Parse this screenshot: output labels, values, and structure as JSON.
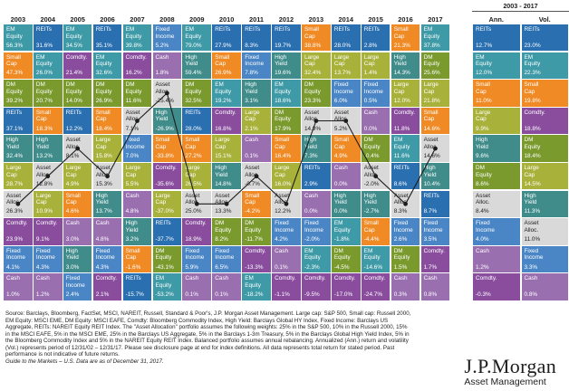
{
  "chart_data": {
    "type": "table",
    "columns": [
      "2003",
      "2004",
      "2005",
      "2006",
      "2007",
      "2008",
      "2009",
      "2010",
      "2011",
      "2012",
      "2013",
      "2014",
      "2015",
      "2016",
      "2017"
    ],
    "summary_header": "2003 - 2017",
    "summary_columns": [
      "Ann.",
      "Vol."
    ],
    "asset_classes": {
      "EM Equity": "#3d9aa6",
      "REITs": "#2a6fb0",
      "Small Cap": "#f08a24",
      "DM Equity": "#7a9a2e",
      "High Yield": "#3f8c8a",
      "Large Cap": "#a8b13a",
      "Asset Alloc.": "#d9d9d9",
      "Comdty.": "#8a4d9e",
      "Fixed Income": "#4a86c5",
      "Cash": "#9a6fb0"
    },
    "rows": [
      [
        [
          "EM Equity",
          "56.3%"
        ],
        [
          "REITs",
          "31.6%"
        ],
        [
          "EM Equity",
          "34.5%"
        ],
        [
          "REITs",
          "35.1%"
        ],
        [
          "EM Equity",
          "39.8%"
        ],
        [
          "Fixed Income",
          "5.2%"
        ],
        [
          "EM Equity",
          "79.0%"
        ],
        [
          "REITs",
          "27.9%"
        ],
        [
          "REITs",
          "8.3%"
        ],
        [
          "REITs",
          "19.7%"
        ],
        [
          "Small Cap",
          "38.8%"
        ],
        [
          "REITs",
          "28.0%"
        ],
        [
          "REITs",
          "2.8%"
        ],
        [
          "Small Cap",
          "21.3%"
        ],
        [
          "EM Equity",
          "37.8%"
        ],
        [
          "REITs",
          "12.7%"
        ],
        [
          "REITs",
          "23.0%"
        ]
      ],
      [
        [
          "Small Cap",
          "47.3%"
        ],
        [
          "EM Equity",
          "26.0%"
        ],
        [
          "Comdty.",
          "21.4%"
        ],
        [
          "EM Equity",
          "32.6%"
        ],
        [
          "Comdty.",
          "16.2%"
        ],
        [
          "Cash",
          "1.8%"
        ],
        [
          "High Yield",
          "59.4%"
        ],
        [
          "Small Cap",
          "26.9%"
        ],
        [
          "Fixed Income",
          "7.8%"
        ],
        [
          "High Yield",
          "19.6%"
        ],
        [
          "Large Cap",
          "32.4%"
        ],
        [
          "Large Cap",
          "13.7%"
        ],
        [
          "Large Cap",
          "1.4%"
        ],
        [
          "High Yield",
          "14.3%"
        ],
        [
          "DM Equity",
          "25.6%"
        ],
        [
          "EM Equity",
          "12.0%"
        ],
        [
          "EM Equity",
          "22.3%"
        ]
      ],
      [
        [
          "DM Equity",
          "39.2%"
        ],
        [
          "DM Equity",
          "20.7%"
        ],
        [
          "DM Equity",
          "14.0%"
        ],
        [
          "DM Equity",
          "26.9%"
        ],
        [
          "DM Equity",
          "11.6%"
        ],
        [
          "Asset Alloc.",
          "-25.4%"
        ],
        [
          "DM Equity",
          "32.5%"
        ],
        [
          "EM Equity",
          "19.2%"
        ],
        [
          "High Yield",
          "3.1%"
        ],
        [
          "EM Equity",
          "18.6%"
        ],
        [
          "DM Equity",
          "23.3%"
        ],
        [
          "Fixed Income",
          "6.0%"
        ],
        [
          "Fixed Income",
          "0.5%"
        ],
        [
          "Large Cap",
          "12.0%"
        ],
        [
          "Large Cap",
          "21.8%"
        ],
        [
          "Small Cap",
          "11.0%"
        ],
        [
          "Small Cap",
          "19.8%"
        ]
      ],
      [
        [
          "REITs",
          "37.1%"
        ],
        [
          "Small Cap",
          "18.3%"
        ],
        [
          "REITs",
          "12.2%"
        ],
        [
          "Small Cap",
          "18.4%"
        ],
        [
          "Asset Alloc.",
          "7.1%"
        ],
        [
          "High Yield",
          "-26.9%"
        ],
        [
          "REITs",
          "28.0%"
        ],
        [
          "Comdty.",
          "16.8%"
        ],
        [
          "Large Cap",
          "2.1%"
        ],
        [
          "DM Equity",
          "17.9%"
        ],
        [
          "Asset Alloc.",
          "14.9%"
        ],
        [
          "Asset Alloc.",
          "5.2%"
        ],
        [
          "Cash",
          "0.0%"
        ],
        [
          "Comdty.",
          "11.8%"
        ],
        [
          "Small Cap",
          "14.6%"
        ],
        [
          "Large Cap",
          "9.9%"
        ],
        [
          "Comdty.",
          "18.8%"
        ]
      ],
      [
        [
          "High Yield",
          "32.4%"
        ],
        [
          "High Yield",
          "13.2%"
        ],
        [
          "Asset Alloc.",
          "8.1%"
        ],
        [
          "Large Cap",
          "15.8%"
        ],
        [
          "Fixed Income",
          "7.0%"
        ],
        [
          "Small Cap",
          "-33.8%"
        ],
        [
          "Small Cap",
          "27.2%"
        ],
        [
          "Large Cap",
          "15.1%"
        ],
        [
          "Cash",
          "0.1%"
        ],
        [
          "Small Cap",
          "16.4%"
        ],
        [
          "High Yield",
          "7.3%"
        ],
        [
          "Small Cap",
          "4.9%"
        ],
        [
          "DM Equity",
          "-0.4%"
        ],
        [
          "EM Equity",
          "11.6%"
        ],
        [
          "Asset Alloc.",
          "14.6%"
        ],
        [
          "High Yield",
          "9.6%"
        ],
        [
          "DM Equity",
          "18.4%"
        ]
      ],
      [
        [
          "Large Cap",
          "28.7%"
        ],
        [
          "Asset Alloc.",
          "12.8%"
        ],
        [
          "Large Cap",
          "4.9%"
        ],
        [
          "Asset Alloc.",
          "15.3%"
        ],
        [
          "Large Cap",
          "5.5%"
        ],
        [
          "Comdty.",
          "-35.6%"
        ],
        [
          "Large Cap",
          "26.5%"
        ],
        [
          "High Yield",
          "14.8%"
        ],
        [
          "Asset Alloc.",
          "-0.7%"
        ],
        [
          "Large Cap",
          "16.0%"
        ],
        [
          "REITs",
          "2.9%"
        ],
        [
          "Cash",
          "0.0%"
        ],
        [
          "Asset Alloc.",
          "-2.0%"
        ],
        [
          "REITs",
          "8.6%"
        ],
        [
          "High Yield",
          "10.4%"
        ],
        [
          "DM Equity",
          "8.6%"
        ],
        [
          "Large Cap",
          "14.5%"
        ]
      ],
      [
        [
          "Asset Alloc.",
          "26.3%"
        ],
        [
          "Large Cap",
          "10.9%"
        ],
        [
          "Small Cap",
          "4.6%"
        ],
        [
          "High Yield",
          "13.7%"
        ],
        [
          "Cash",
          "4.8%"
        ],
        [
          "Large Cap",
          "-37.0%"
        ],
        [
          "Asset Alloc.",
          "25.0%"
        ],
        [
          "Asset Alloc.",
          "13.3%"
        ],
        [
          "Small Cap",
          "-4.2%"
        ],
        [
          "Asset Alloc.",
          "12.2%"
        ],
        [
          "Cash",
          "0.0%"
        ],
        [
          "High Yield",
          "0.0%"
        ],
        [
          "High Yield",
          "-2.7%"
        ],
        [
          "Asset Alloc.",
          "8.3%"
        ],
        [
          "REITs",
          "8.7%"
        ],
        [
          "Asset Alloc.",
          "8.4%"
        ],
        [
          "High Yield",
          "11.3%"
        ]
      ],
      [
        [
          "Comdty.",
          "23.9%"
        ],
        [
          "Comdty.",
          "9.1%"
        ],
        [
          "Cash",
          "3.0%"
        ],
        [
          "Cash",
          "4.8%"
        ],
        [
          "High Yield",
          "3.2%"
        ],
        [
          "REITs",
          "-37.7%"
        ],
        [
          "Comdty.",
          "18.9%"
        ],
        [
          "DM Equity",
          "8.2%"
        ],
        [
          "DM Equity",
          "-11.7%"
        ],
        [
          "Fixed Income",
          "4.2%"
        ],
        [
          "Fixed Income",
          "-2.0%"
        ],
        [
          "EM Equity",
          "-1.8%"
        ],
        [
          "Small Cap",
          "-4.4%"
        ],
        [
          "Fixed Income",
          "2.6%"
        ],
        [
          "Fixed Income",
          "3.5%"
        ],
        [
          "Fixed Income",
          "4.0%"
        ],
        [
          "Asset Alloc.",
          "11.0%"
        ]
      ],
      [
        [
          "Fixed Income",
          "4.1%"
        ],
        [
          "Fixed Income",
          "4.3%"
        ],
        [
          "High Yield",
          "3.0%"
        ],
        [
          "Fixed Income",
          "4.3%"
        ],
        [
          "Small Cap",
          "-1.6%"
        ],
        [
          "DM Equity",
          "-43.1%"
        ],
        [
          "Fixed Income",
          "5.9%"
        ],
        [
          "Fixed Income",
          "6.5%"
        ],
        [
          "Comdty.",
          "-13.3%"
        ],
        [
          "Cash",
          "0.1%"
        ],
        [
          "EM Equity",
          "-2.3%"
        ],
        [
          "DM Equity",
          "-4.5%"
        ],
        [
          "EM Equity",
          "-14.6%"
        ],
        [
          "DM Equity",
          "1.5%"
        ],
        [
          "Comdty.",
          "1.7%"
        ],
        [
          "Cash",
          "1.2%"
        ],
        [
          "Fixed Income",
          "3.3%"
        ]
      ],
      [
        [
          "Cash",
          "1.0%"
        ],
        [
          "Cash",
          "1.2%"
        ],
        [
          "Fixed Income",
          "2.4%"
        ],
        [
          "Comdty.",
          "2.1%"
        ],
        [
          "REITs",
          "-15.7%"
        ],
        [
          "EM Equity",
          "-53.2%"
        ],
        [
          "Cash",
          "0.1%"
        ],
        [
          "Cash",
          "0.1%"
        ],
        [
          "EM Equity",
          "-18.2%"
        ],
        [
          "Comdty.",
          "-1.1%"
        ],
        [
          "Comdty.",
          "-9.5%"
        ],
        [
          "Comdty.",
          "-17.0%"
        ],
        [
          "Comdty.",
          "-24.7%"
        ],
        [
          "Cash",
          "0.3%"
        ],
        [
          "Cash",
          "0.8%"
        ],
        [
          "Comdty.",
          "-0.3%"
        ],
        [
          "Cash",
          "0.8%"
        ]
      ]
    ],
    "asset_allocation_rank": [
      6,
      5,
      4,
      5,
      3,
      2,
      6,
      6,
      5,
      6,
      3,
      3,
      5,
      6,
      4
    ]
  },
  "source": {
    "text": "Source: Barclays, Bloomberg, FactSet, MSCI, NAREIT, Russell, Standard & Poor's, J.P. Morgan Asset Management. Large cap: S&P 500, Small cap: Russell 2000, EM Equity: MSCI EME, DM Equity: MSCI EAFE, Comdty: Bloomberg Commodity Index, High Yield: Barclays Global HY Index, Fixed Income: Barclays US Aggregate, REITs: NAREIT Equity REIT Index. The \"Asset Allocation\" portfolio assumes the following weights: 25% in the S&P 500, 10% in the Russell 2000, 15% in the MSCI EAFE, 5% in the MSCI EME, 25% in the Barclays US Aggregate, 5% in the Barclays 1-3m Treasury, 5% in the Barclays Global High Yield Index, 5% in the Bloomberg Commodity Index and 5% in the NAREIT Equity REIT Index. Balanced portfolio assumes annual rebalancing. Annualized (Ann.) return and volatility (Vol.) represents period of 12/31/02 – 12/31/17. Please see disclosure page at end for index definitions. All data represents total return for stated period. Past performance is not indicative of future returns.",
    "guide": "Guide to the Markets – U.S. Data are as of December 31, 2017."
  },
  "brand": {
    "name": "J.P.Morgan",
    "sub": "Asset Management"
  }
}
